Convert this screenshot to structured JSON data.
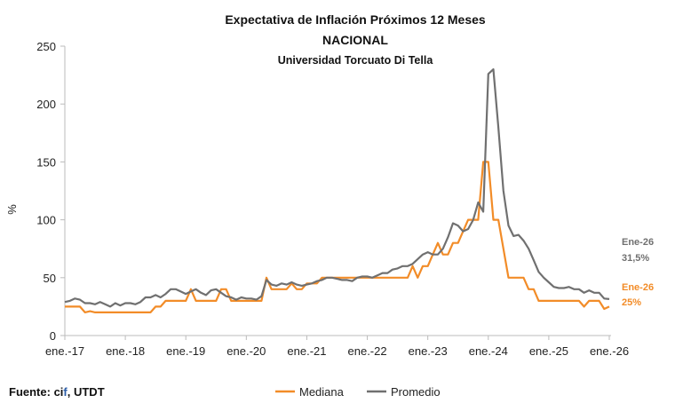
{
  "chart_data": {
    "type": "line",
    "title": "Expectativa de Inflación Próximos 12 Meses",
    "subtitle": "NACIONAL",
    "subtitle2": "Universidad Torcuato Di Tella",
    "xlabel": "",
    "ylabel": "%",
    "ylim": [
      0,
      250
    ],
    "yticks": [
      0,
      50,
      100,
      150,
      200,
      250
    ],
    "xticks": [
      "ene.-17",
      "ene.-18",
      "ene.-19",
      "ene.-20",
      "ene.-21",
      "ene.-22",
      "ene.-23",
      "ene.-24",
      "ene.-25",
      "ene.-26"
    ],
    "x_start": "2017-01",
    "x_end": "2026-01",
    "frequency": "monthly",
    "grid": false,
    "legend_position": "bottom",
    "series": [
      {
        "name": "Mediana",
        "color": "#F28C28",
        "values": [
          25,
          25,
          25,
          25,
          20,
          21,
          20,
          20,
          20,
          20,
          20,
          20,
          20,
          20,
          20,
          20,
          20,
          20,
          25,
          25,
          30,
          30,
          30,
          30,
          30,
          40,
          30,
          30,
          30,
          30,
          30,
          40,
          40,
          30,
          30,
          30,
          30,
          30,
          30,
          30,
          50,
          40,
          40,
          40,
          40,
          45,
          40,
          40,
          45,
          45,
          45,
          50,
          50,
          50,
          50,
          50,
          50,
          50,
          50,
          50,
          50,
          50,
          50,
          50,
          50,
          50,
          50,
          50,
          50,
          60,
          50,
          60,
          60,
          70,
          80,
          70,
          70,
          80,
          80,
          90,
          100,
          100,
          100,
          150,
          150,
          100,
          100,
          75,
          50,
          50,
          50,
          50,
          40,
          40,
          30,
          30,
          30,
          30,
          30,
          30,
          30,
          30,
          30,
          25,
          30,
          30,
          30,
          23,
          25
        ]
      },
      {
        "name": "Promedio",
        "color": "#707070",
        "values": [
          29,
          30,
          32,
          31,
          28,
          28,
          27,
          29,
          27,
          25,
          28,
          26,
          28,
          28,
          27,
          29,
          33,
          33,
          35,
          33,
          36,
          40,
          40,
          38,
          36,
          38,
          40,
          37,
          35,
          39,
          40,
          37,
          34,
          33,
          31,
          33,
          32,
          32,
          31,
          34,
          48,
          44,
          43,
          45,
          44,
          46,
          44,
          43,
          44,
          45,
          47,
          48,
          50,
          50,
          49,
          48,
          48,
          47,
          50,
          51,
          51,
          50,
          52,
          54,
          54,
          57,
          58,
          60,
          60,
          62,
          66,
          70,
          72,
          70,
          70,
          75,
          85,
          97,
          95,
          90,
          92,
          100,
          115,
          107,
          226,
          230,
          180,
          125,
          95,
          86,
          87,
          82,
          75,
          65,
          55,
          50,
          46,
          42,
          41,
          41,
          42,
          40,
          40,
          37,
          39,
          37,
          37,
          32,
          31.5
        ]
      }
    ],
    "annotations": [
      {
        "series": "Promedio",
        "label": "Ene-26",
        "value": "31,5%"
      },
      {
        "series": "Mediana",
        "label": "Ene-26",
        "value": "25%"
      }
    ]
  },
  "source": {
    "prefix": "Fuente: ",
    "name_a": "ci",
    "name_b": "f",
    "suffix": ", UTDT"
  },
  "source_f_color": "#2A5DA8"
}
